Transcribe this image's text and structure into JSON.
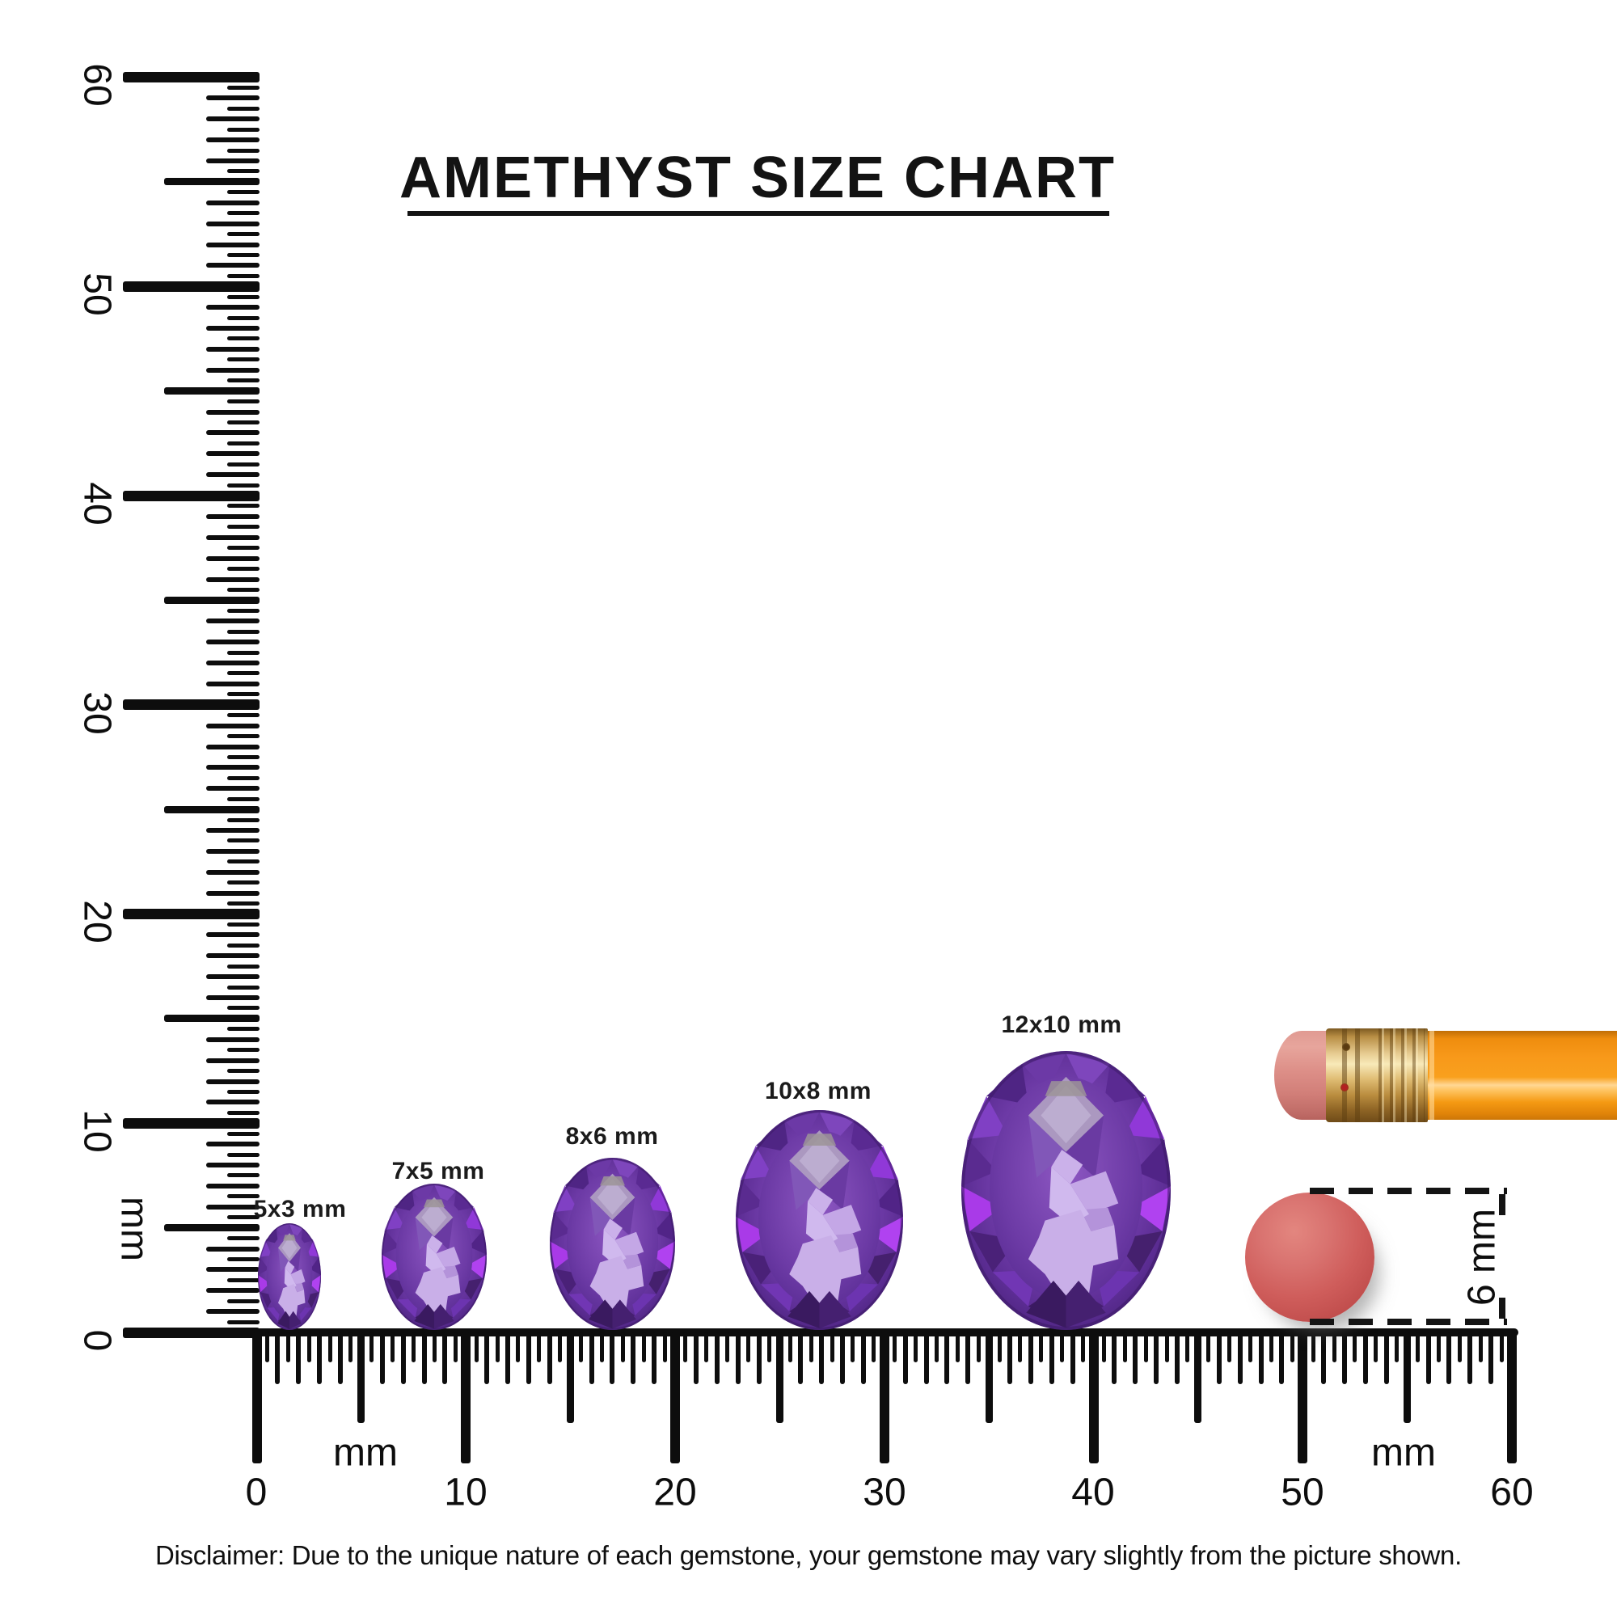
{
  "title": "AMETHYST SIZE CHART",
  "rulers": {
    "unit_label": "mm",
    "min": 0,
    "max": 60,
    "major_step": 10,
    "vertical": {
      "tick_labels": [
        "0",
        "10",
        "20",
        "30",
        "40",
        "50",
        "60"
      ]
    },
    "horizontal": {
      "tick_labels": [
        "0",
        "10",
        "20",
        "30",
        "40",
        "50",
        "60"
      ]
    }
  },
  "gems": [
    {
      "label": "5x3 mm",
      "length_mm": 5,
      "width_mm": 3
    },
    {
      "label": "7x5 mm",
      "length_mm": 7,
      "width_mm": 5
    },
    {
      "label": "8x6 mm",
      "length_mm": 8,
      "width_mm": 6
    },
    {
      "label": "10x8 mm",
      "length_mm": 10,
      "width_mm": 8
    },
    {
      "label": "12x10 mm",
      "length_mm": 12,
      "width_mm": 10
    }
  ],
  "reference_objects": {
    "circle": {
      "diameter_label": "6 mm"
    },
    "pencil": "pencil eraser end"
  },
  "disclaimer": "Disclaimer: Due to the unique nature of each gemstone, your gemstone may vary slightly from the picture shown.",
  "colors": {
    "ink": "#0d0d0d",
    "amethyst_deep": "#45206e",
    "amethyst_mid": "#6a35a8",
    "amethyst_bright": "#a940ec",
    "amethyst_light": "#c9aee9",
    "pencil_orange": "#f8991a",
    "ferrule_gold": "#e0bd74",
    "eraser_pink": "#dd8f88",
    "circle_red": "#cf5d5b"
  }
}
